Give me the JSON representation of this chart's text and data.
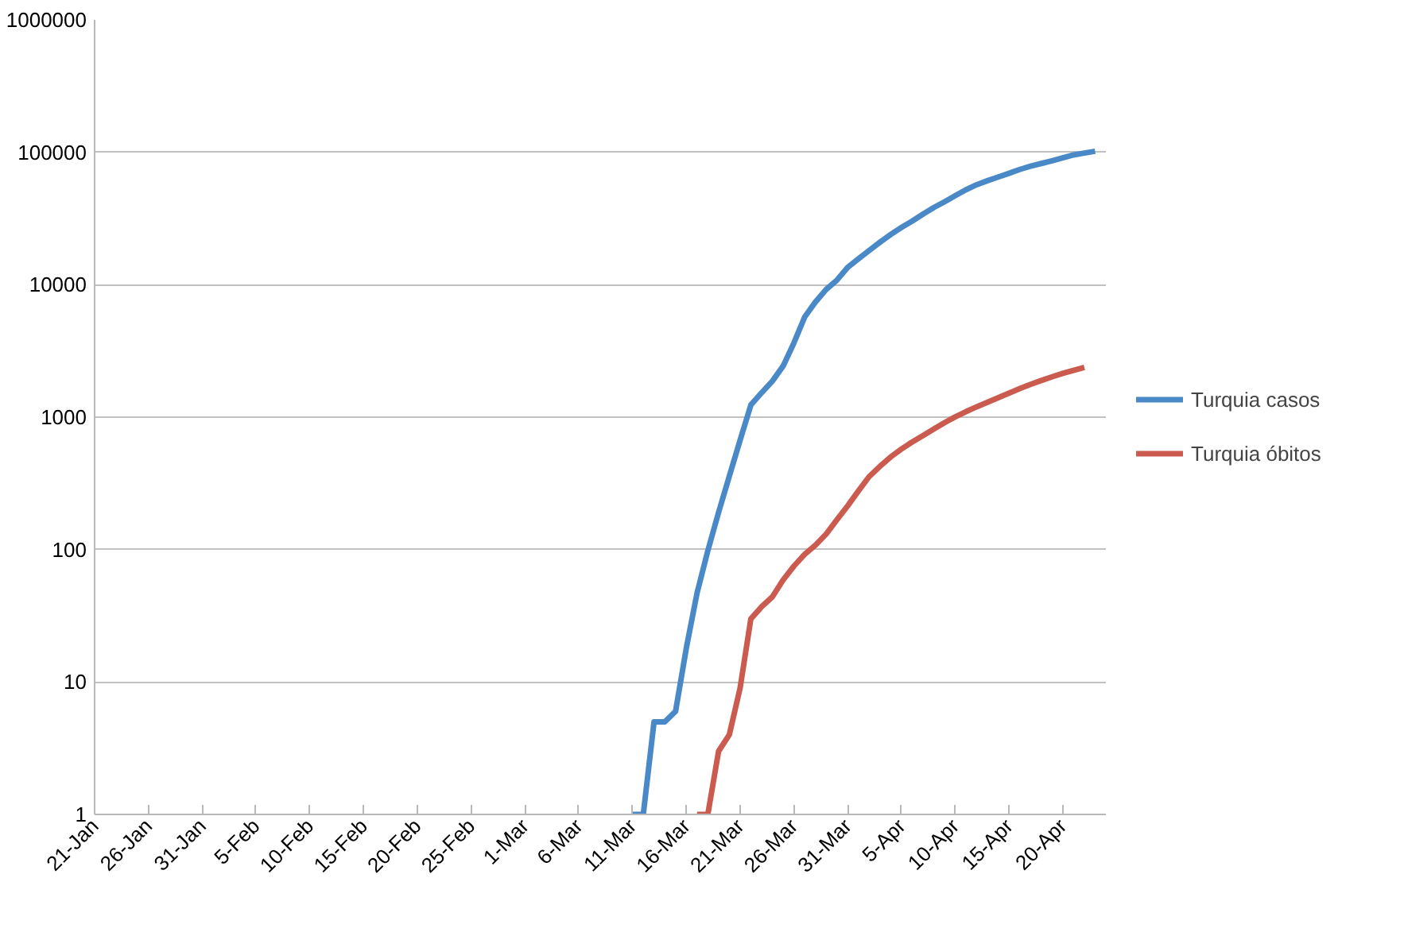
{
  "chart_data": {
    "type": "line",
    "log": "y",
    "grid": "y",
    "legend": "right",
    "line_style": "solid",
    "marker": "none",
    "categories": [
      "21-Jan",
      null,
      null,
      null,
      null,
      "26-Jan",
      null,
      null,
      null,
      null,
      "31-Jan",
      null,
      null,
      null,
      null,
      "5-Feb",
      null,
      null,
      null,
      null,
      "10-Feb",
      null,
      null,
      null,
      null,
      "15-Feb",
      null,
      null,
      null,
      null,
      "20-Feb",
      null,
      null,
      null,
      null,
      "25-Feb",
      null,
      null,
      null,
      null,
      "1-Mar",
      null,
      null,
      null,
      null,
      "6-Mar",
      null,
      null,
      null,
      null,
      "11-Mar",
      null,
      null,
      null,
      null,
      "16-Mar",
      null,
      null,
      null,
      null,
      "21-Mar",
      null,
      null,
      null,
      null,
      "26-Mar",
      null,
      null,
      null,
      null,
      "31-Mar",
      null,
      null,
      null,
      null,
      "5-Apr",
      null,
      null,
      null,
      null,
      "10-Apr",
      null,
      null,
      null,
      null,
      "15-Apr",
      null,
      null,
      null,
      null,
      "20-Apr",
      null,
      null,
      null,
      null
    ],
    "ylim": [
      1,
      1000000
    ],
    "yticks": [
      1,
      10,
      100,
      1000,
      10000,
      100000,
      1000000
    ],
    "series": [
      {
        "name": "Turquia casos",
        "color": "#4a89c8",
        "values": [
          null,
          null,
          null,
          null,
          null,
          null,
          null,
          null,
          null,
          null,
          null,
          null,
          null,
          null,
          null,
          null,
          null,
          null,
          null,
          null,
          null,
          null,
          null,
          null,
          null,
          null,
          null,
          null,
          null,
          null,
          null,
          null,
          null,
          null,
          null,
          null,
          null,
          null,
          null,
          null,
          null,
          null,
          null,
          null,
          null,
          null,
          null,
          null,
          null,
          null,
          1,
          1,
          5,
          5,
          6,
          18,
          47,
          98,
          191,
          359,
          670,
          1236,
          1529,
          1872,
          2433,
          3629,
          5698,
          7402,
          9217,
          10827,
          13531,
          15679,
          18135,
          20921,
          23934,
          27069,
          30217,
          34109,
          38226,
          42282,
          47029,
          52167,
          56956,
          61049,
          65111,
          69392,
          74193,
          78546,
          82329,
          86306,
          90980,
          95591,
          98674,
          101790,
          null
        ]
      },
      {
        "name": "Turquia óbitos",
        "color": "#cb5a4f",
        "values": [
          null,
          null,
          null,
          null,
          null,
          null,
          null,
          null,
          null,
          null,
          null,
          null,
          null,
          null,
          null,
          null,
          null,
          null,
          null,
          null,
          null,
          null,
          null,
          null,
          null,
          null,
          null,
          null,
          null,
          null,
          null,
          null,
          null,
          null,
          null,
          null,
          null,
          null,
          null,
          null,
          null,
          null,
          null,
          null,
          null,
          null,
          null,
          null,
          null,
          null,
          null,
          null,
          null,
          null,
          null,
          null,
          1,
          1,
          3,
          4,
          9,
          30,
          37,
          44,
          59,
          75,
          92,
          108,
          131,
          168,
          214,
          277,
          356,
          425,
          501,
          574,
          649,
          725,
          812,
          908,
          1006,
          1101,
          1198,
          1296,
          1403,
          1518,
          1643,
          1769,
          1890,
          2017,
          2140,
          2259,
          2376,
          null,
          null
        ]
      }
    ]
  }
}
